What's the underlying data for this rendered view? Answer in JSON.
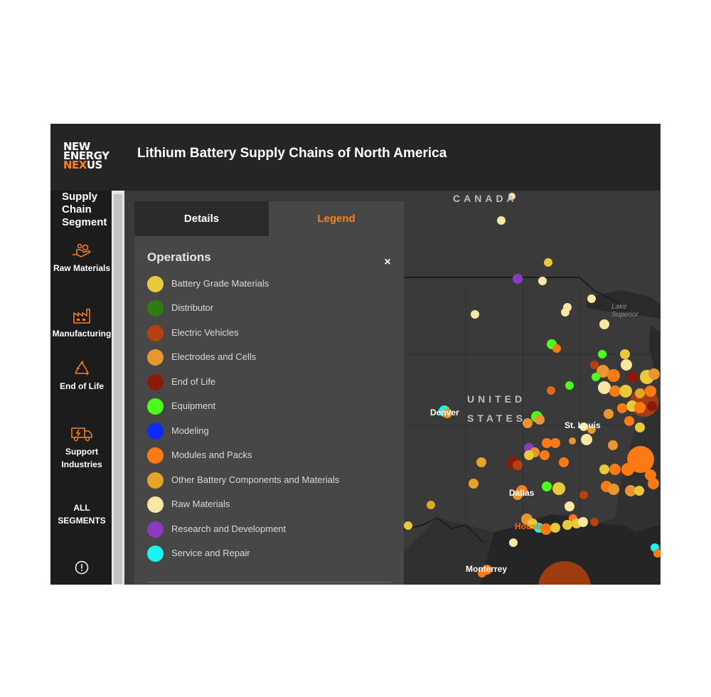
{
  "header": {
    "logo": {
      "line1": "NEW",
      "line2": "ENERGY",
      "line3_a": "NEX",
      "line3_b": "US"
    },
    "title": "Lithium Battery Supply Chains of North America"
  },
  "sidebar": {
    "title": "Supply Chain Segment",
    "items": [
      {
        "label": "Raw Materials",
        "icon": "hand-coins-icon"
      },
      {
        "label": "Manufacturing",
        "icon": "factory-icon"
      },
      {
        "label": "End of Life",
        "icon": "recycle-icon"
      },
      {
        "label": "Support Industries",
        "icon": "truck-icon"
      },
      {
        "label": "ALL SEGMENTS",
        "icon": ""
      }
    ],
    "info_icon": "info-icon"
  },
  "panel": {
    "tabs": [
      {
        "label": "Details",
        "active": false
      },
      {
        "label": "Legend",
        "active": true
      }
    ],
    "heading": "Operations",
    "close": "×",
    "legend": [
      {
        "label": "Battery Grade Materials",
        "color": "#e8c93a"
      },
      {
        "label": "Distributor",
        "color": "#2e7d12"
      },
      {
        "label": "Electric Vehicles",
        "color": "#b7410e"
      },
      {
        "label": "Electrodes and Cells",
        "color": "#e8962e"
      },
      {
        "label": "End of Life",
        "color": "#8b1a0a"
      },
      {
        "label": "Equipment",
        "color": "#4cff18"
      },
      {
        "label": "Modeling",
        "color": "#0b2bff"
      },
      {
        "label": "Modules and Packs",
        "color": "#fb7a14"
      },
      {
        "label": "Other Battery Components and Materials",
        "color": "#e6a424"
      },
      {
        "label": "Raw Materials",
        "color": "#f7e7a2"
      },
      {
        "label": "Research and Development",
        "color": "#8c3ac4"
      },
      {
        "label": "Service and Repair",
        "color": "#1af4f0"
      }
    ]
  },
  "map": {
    "labels": {
      "canada": "CANADA",
      "united": "UNITED",
      "states": "STATES"
    },
    "cities": {
      "denver": "Denver",
      "st_louis": "St. Louis",
      "dallas": "Dallas",
      "monterrey": "Monterrey",
      "houston": "Houston"
    },
    "lake": {
      "line1": "Lake",
      "line2": "Superior"
    }
  },
  "colors": {
    "accent": "#f7831f",
    "background": "#2b2b2b"
  }
}
